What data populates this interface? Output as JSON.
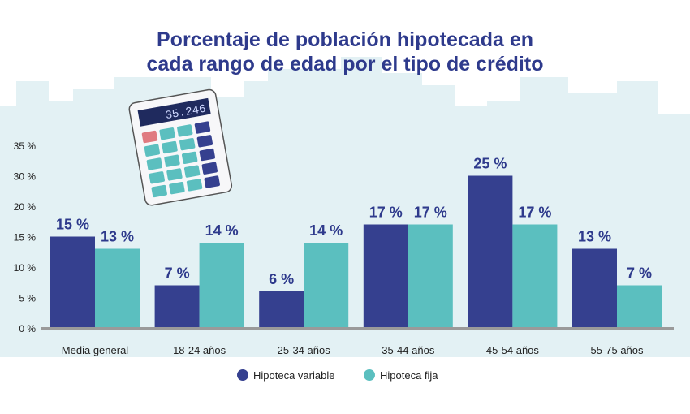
{
  "chart_data": {
    "type": "bar",
    "title": "Porcentaje de población hipotecada en cada rango de edad por el tipo de crédito",
    "title_lines": [
      "Porcentaje de población hipotecada en",
      "cada rango de edad por el tipo de crédito"
    ],
    "categories": [
      "Media general",
      "18-24 años",
      "25-34 años",
      "35-44 años",
      "45-54 años",
      "55-75 años"
    ],
    "series": [
      {
        "name": "Hipoteca variable",
        "values": [
          15,
          7,
          6,
          17,
          25,
          13
        ],
        "labels": [
          "15 %",
          "7 %",
          "6 %",
          "17 %",
          "25 %",
          "13 %"
        ],
        "color": "#35408f"
      },
      {
        "name": "Hipoteca fija",
        "values": [
          13,
          14,
          14,
          17,
          17,
          7
        ],
        "labels": [
          "13 %",
          "14 %",
          "14 %",
          "17 %",
          "17 %",
          "7 %"
        ],
        "color": "#5bbfbf"
      }
    ],
    "ytick_labels": [
      "0 %",
      "5 %",
      "10 %",
      "15 %",
      "20 %",
      "30 %",
      "35 %"
    ],
    "ylim": [
      0,
      35
    ],
    "grid": false,
    "legend_placement": "bottom",
    "colors": {
      "title": "#2e3a8c",
      "background": "#e3f1f4",
      "axis": "#9a9a9a"
    }
  },
  "illustration": {
    "calculator_display": "35.246"
  }
}
